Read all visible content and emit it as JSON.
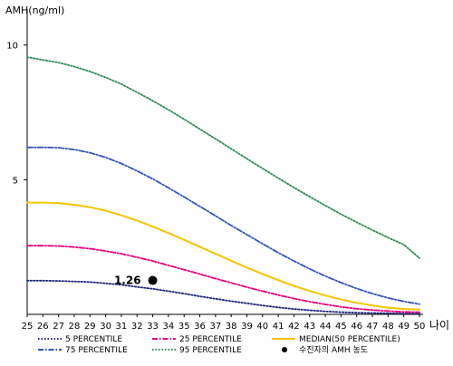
{
  "chart_data": {
    "type": "line",
    "ylabel": "AMH(ng/ml)",
    "xlabel": "나이",
    "ylim": [
      0,
      11
    ],
    "xlim": [
      25,
      50
    ],
    "yticks": [
      5,
      10
    ],
    "x": [
      25,
      26,
      27,
      28,
      29,
      30,
      31,
      32,
      33,
      34,
      35,
      36,
      37,
      38,
      39,
      40,
      41,
      42,
      43,
      44,
      45,
      46,
      47,
      48,
      49,
      50
    ],
    "x_tick_labels": [
      "25",
      "26",
      "27",
      "28",
      "29",
      "30",
      "31",
      "32",
      "33",
      "34",
      "35",
      "36",
      "37",
      "38",
      "39",
      "40",
      "41",
      "42",
      "43",
      "44",
      "45",
      "46",
      "47",
      "48",
      "49",
      "50"
    ],
    "grid": false,
    "legend_position": "bottom",
    "series": [
      {
        "name": "5 PERCENTILE",
        "color": "#1a237e",
        "style": "dotted",
        "values": [
          1.25,
          1.25,
          1.24,
          1.22,
          1.2,
          1.15,
          1.1,
          1.02,
          0.95,
          0.86,
          0.77,
          0.67,
          0.58,
          0.49,
          0.41,
          0.33,
          0.26,
          0.2,
          0.15,
          0.11,
          0.08,
          0.06,
          0.05,
          0.04,
          0.03,
          0.03
        ]
      },
      {
        "name": "25 PERCENTILE",
        "color": "#e6007e",
        "style": "dash-dot",
        "values": [
          2.55,
          2.55,
          2.54,
          2.5,
          2.44,
          2.35,
          2.25,
          2.12,
          1.98,
          1.82,
          1.66,
          1.5,
          1.33,
          1.17,
          1.01,
          0.86,
          0.72,
          0.59,
          0.47,
          0.37,
          0.28,
          0.21,
          0.16,
          0.12,
          0.09,
          0.08
        ]
      },
      {
        "name": "MEDIAN(50 PERCENTILE)",
        "color": "#f5c400",
        "style": "solid",
        "values": [
          4.15,
          4.15,
          4.13,
          4.07,
          3.98,
          3.85,
          3.68,
          3.48,
          3.26,
          3.02,
          2.77,
          2.51,
          2.25,
          1.99,
          1.74,
          1.5,
          1.27,
          1.06,
          0.87,
          0.7,
          0.55,
          0.43,
          0.33,
          0.25,
          0.2,
          0.18
        ]
      },
      {
        "name": "75 PERCENTILE",
        "color": "#3355bb",
        "style": "dash-dot",
        "values": [
          6.2,
          6.2,
          6.19,
          6.12,
          6.0,
          5.83,
          5.6,
          5.33,
          5.03,
          4.7,
          4.36,
          4.01,
          3.66,
          3.3,
          2.96,
          2.62,
          2.29,
          1.98,
          1.69,
          1.42,
          1.18,
          0.96,
          0.77,
          0.61,
          0.48,
          0.38
        ]
      },
      {
        "name": "95 PERCENTILE",
        "color": "#2e8b57",
        "style": "dotted",
        "values": [
          9.55,
          9.45,
          9.35,
          9.2,
          9.02,
          8.8,
          8.55,
          8.25,
          7.93,
          7.6,
          7.25,
          6.88,
          6.52,
          6.15,
          5.78,
          5.42,
          5.06,
          4.71,
          4.37,
          4.04,
          3.72,
          3.42,
          3.13,
          2.85,
          2.59,
          2.09
        ]
      }
    ],
    "annotation": {
      "name": "수진자의 AMH 농도",
      "label": "1.26",
      "x": 33,
      "y": 1.26,
      "color": "#000000"
    },
    "legend": [
      {
        "label": "5 PERCENTILE",
        "color": "#1a237e",
        "style": "dotted",
        "marker": "line"
      },
      {
        "label": "25 PERCENTILE",
        "color": "#e6007e",
        "style": "dash-dot",
        "marker": "line"
      },
      {
        "label": "MEDIAN(50 PERCENTILE)",
        "color": "#f5c400",
        "style": "solid",
        "marker": "line"
      },
      {
        "label": "75 PERCENTILE",
        "color": "#3355bb",
        "style": "dash-dot",
        "marker": "line"
      },
      {
        "label": "95 PERCENTILE",
        "color": "#2e8b57",
        "style": "dotted",
        "marker": "line"
      },
      {
        "label": "수진자의 AMH 농도",
        "color": "#000000",
        "style": "solid",
        "marker": "dot"
      }
    ]
  }
}
